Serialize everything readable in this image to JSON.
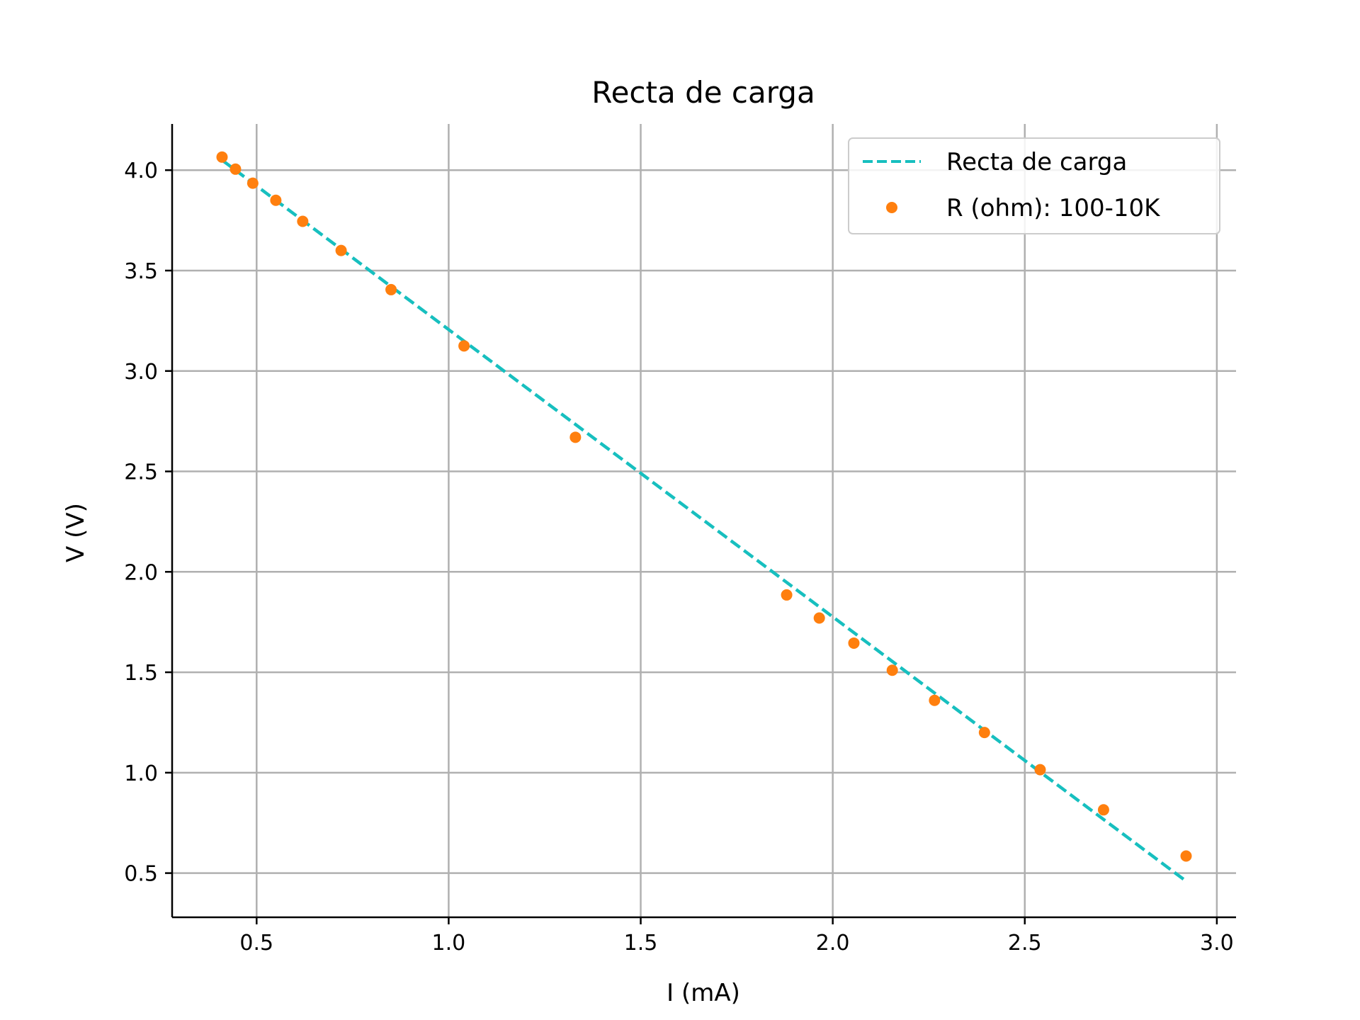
{
  "chart_data": {
    "type": "scatter",
    "title": "Recta de carga",
    "xlabel": "I (mA)",
    "ylabel": "V (V)",
    "xlim": [
      0.28,
      3.05
    ],
    "ylim": [
      0.28,
      4.23
    ],
    "xticks": [
      0.5,
      1.0,
      1.5,
      2.0,
      2.5,
      3.0
    ],
    "xtick_labels": [
      "0.5",
      "1.0",
      "1.5",
      "2.0",
      "2.5",
      "3.0"
    ],
    "yticks": [
      0.5,
      1.0,
      1.5,
      2.0,
      2.5,
      3.0,
      3.5,
      4.0
    ],
    "ytick_labels": [
      "0.5",
      "1.0",
      "1.5",
      "2.0",
      "2.5",
      "3.0",
      "3.5",
      "4.0"
    ],
    "grid": true,
    "legend_position": "top-right",
    "series": [
      {
        "name": "Recta de carga",
        "kind": "line",
        "style": "dashed",
        "color": "#17bfbf",
        "x": [
          0.41,
          2.92
        ],
        "y": [
          4.05,
          0.46
        ]
      },
      {
        "name": "R (ohm): 100-10K",
        "kind": "scatter",
        "color": "#ff7f0e",
        "x": [
          0.41,
          0.445,
          0.49,
          0.55,
          0.62,
          0.72,
          0.85,
          1.04,
          1.33,
          1.88,
          1.965,
          2.055,
          2.155,
          2.265,
          2.395,
          2.54,
          2.705,
          2.92
        ],
        "y": [
          4.065,
          4.005,
          3.935,
          3.85,
          3.745,
          3.6,
          3.405,
          3.125,
          2.67,
          1.885,
          1.77,
          1.645,
          1.51,
          1.36,
          1.2,
          1.015,
          0.815,
          0.585
        ]
      }
    ]
  }
}
